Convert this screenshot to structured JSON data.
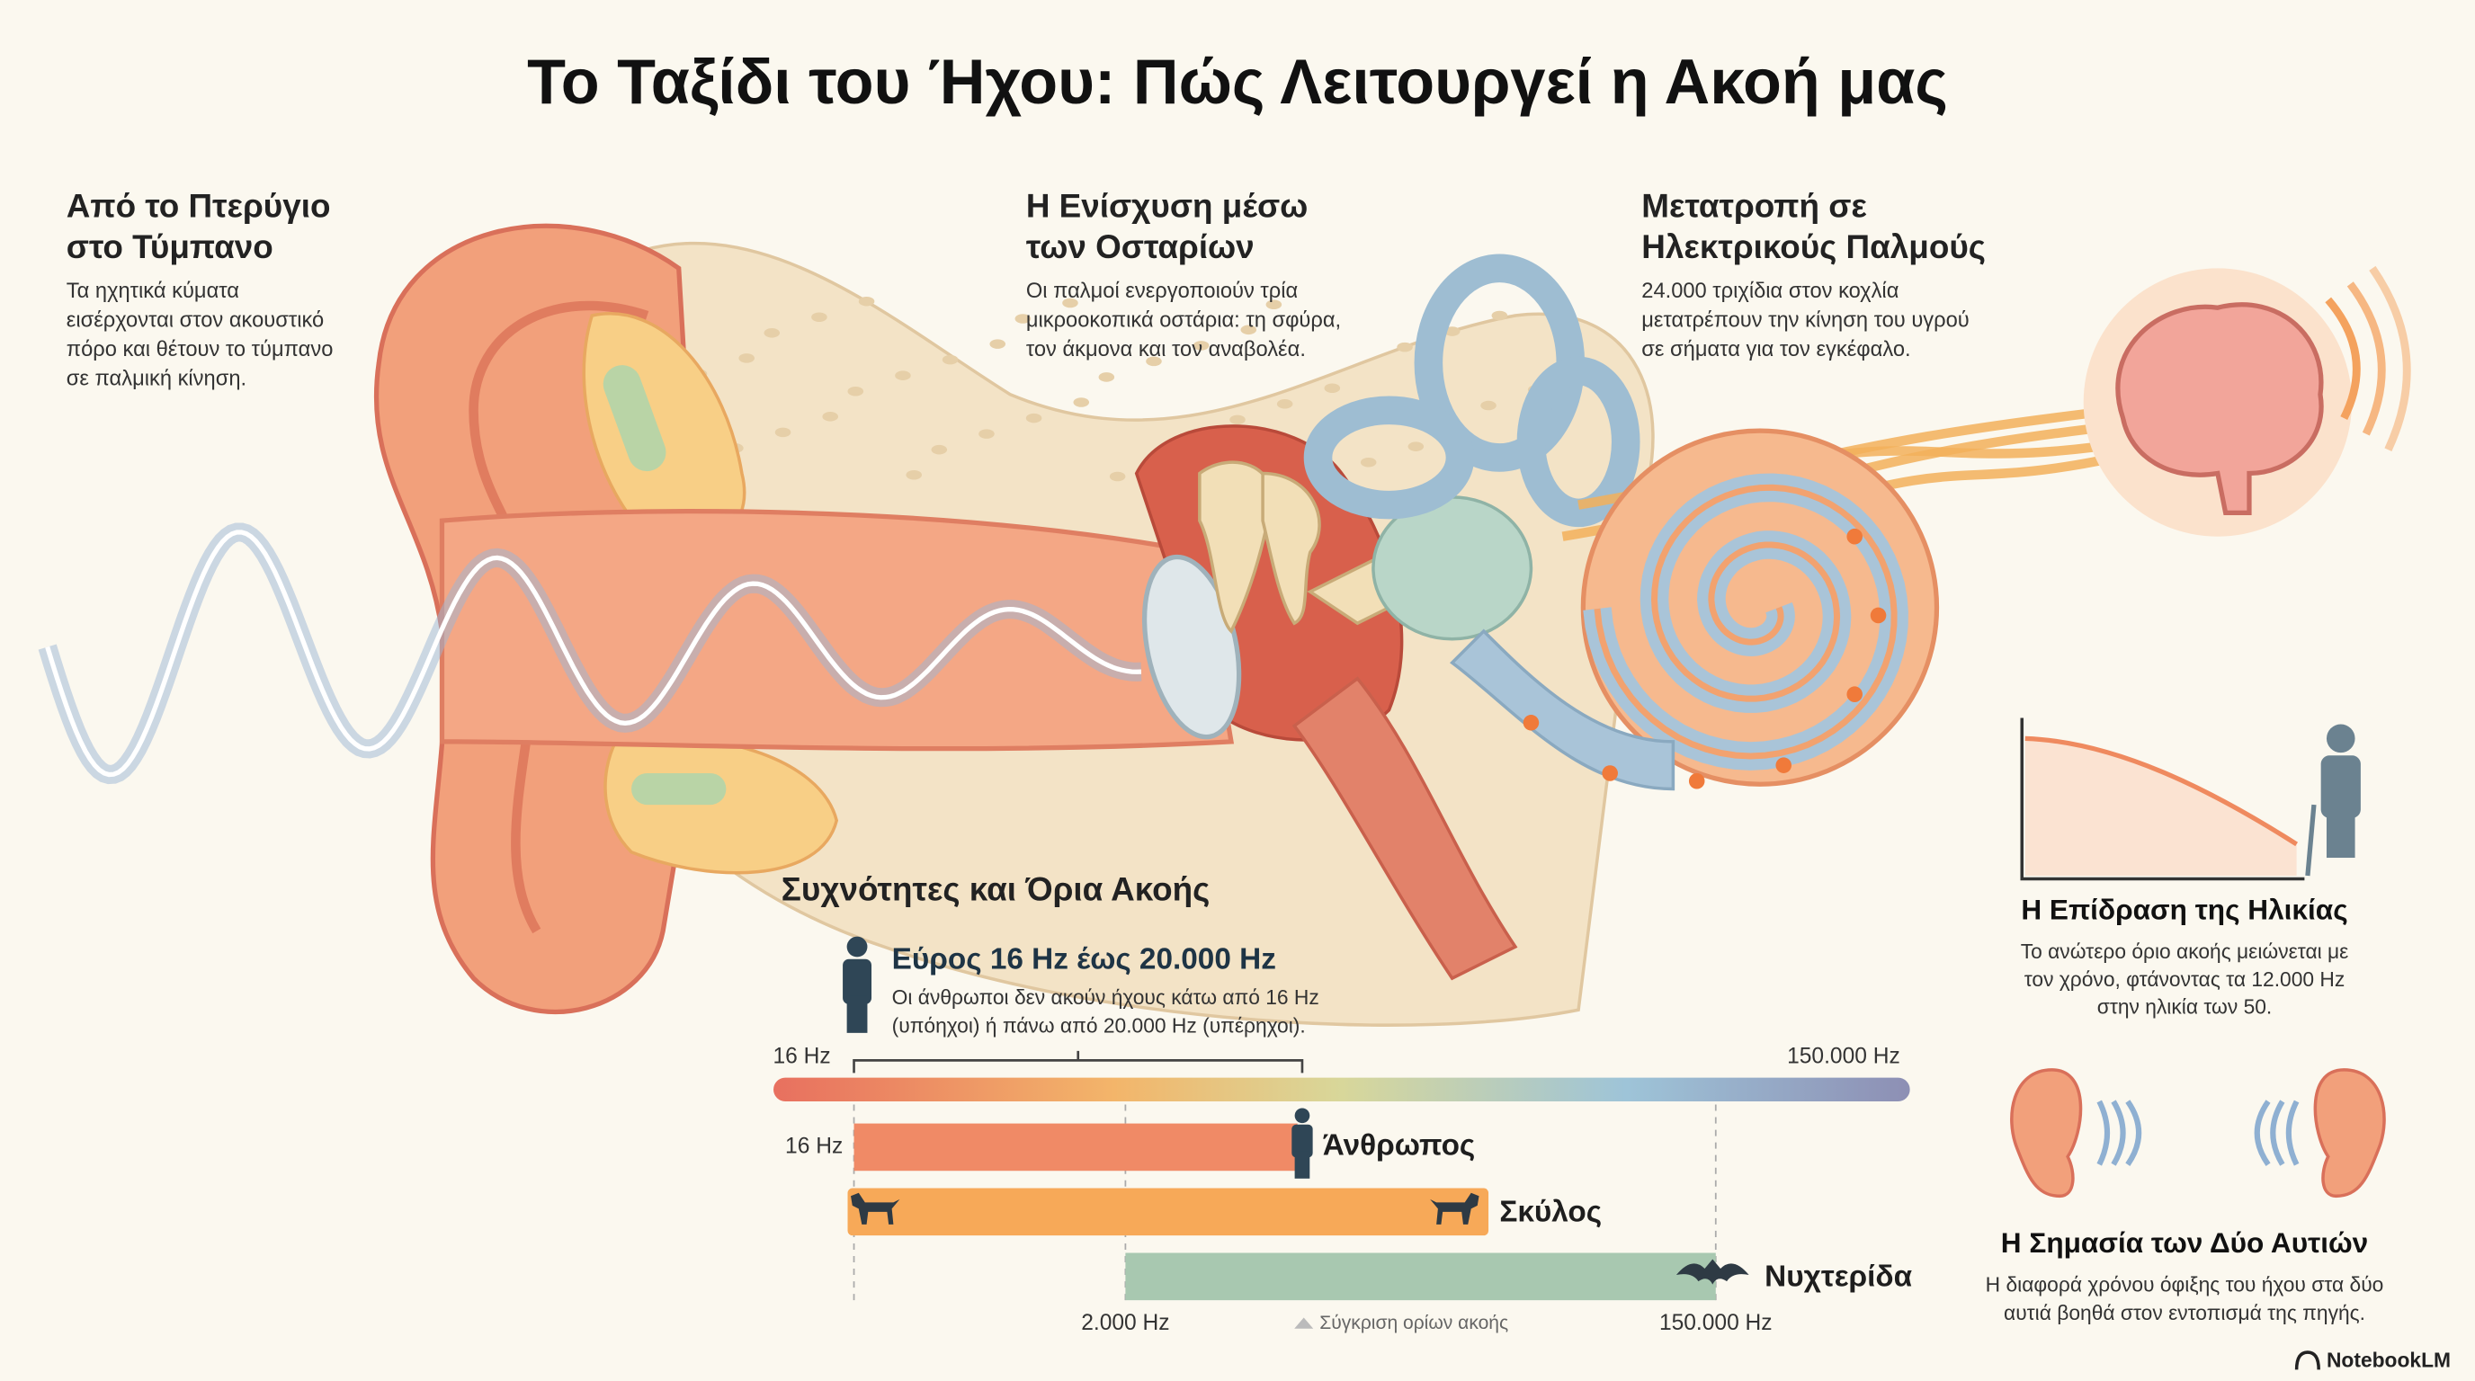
{
  "title": "Το Ταξίδι του Ήχου: Πώς Λειτουργεί η Ακοή μας",
  "outer_ear": {
    "heading": [
      "Από το Πτερύγιο",
      "στο Τύμπανο"
    ],
    "body": [
      "Τα ηχητικά κύματα",
      "εισέρχονται στον ακουστικό",
      "πόρο και θέτουν το τύμπανο",
      "σε παλμική κίνηση."
    ]
  },
  "middle_ear": {
    "heading": [
      "Η Ενίσχυση μέσω",
      "των Οσταρίων"
    ],
    "body": [
      "Οι παλμοί ενεργοποιούν τρία",
      "μικροοκοπικά οστάρια: τη σφύρα,",
      "τον άκμονα και τον αναβολέα."
    ]
  },
  "inner_ear": {
    "heading": [
      "Μετατροπή σε",
      "Ηλεκτρικούς Παλμούς"
    ],
    "body": [
      "24.000 τριχίδια στον κοχλία",
      "μετατρέπουν την κίνηση του υγρού",
      "σε σήματα για τον εγκέφαλο."
    ]
  },
  "frequencies": {
    "heading": "Συχνότητες και Όρια Ακοής",
    "range_title": "Εύρος 16 Hz έως 20.000 Hz",
    "range_body": [
      "Οι άνθρωποι δεν ακούν ήχους κάτω από 16 Hz",
      "(υπόηχοι) ή πάνω από 20.000 Hz (υπέρηχοι)."
    ],
    "scale_start": "16 Hz",
    "scale_end": "150.000 Hz",
    "human_start": "16 Hz",
    "human": "Άνθρωπος",
    "dog": "Σκύλος",
    "bat": "Νυχτερίδα",
    "bat_start": "2.000 Hz",
    "bat_end": "150.000 Hz",
    "caption": "Σύγκριση ορίων ακοής"
  },
  "age": {
    "heading": "Η Επίδραση της Ηλικίας",
    "body": [
      "Το ανώτερο όριο ακοής μειώνεται με",
      "τον χρόνο, φτάνοντας τα 12.000 Hz",
      "στην ηλικία των 50."
    ]
  },
  "two_ears": {
    "heading": "Η Σημασία των Δύο Αυτιών",
    "body": [
      "Η διαφορά χρόνου όφιξης του ήχου στα δύο",
      "αυτιά βοηθά στον εντοπισμά της πηγής."
    ]
  },
  "brand": "NotebookLM"
}
